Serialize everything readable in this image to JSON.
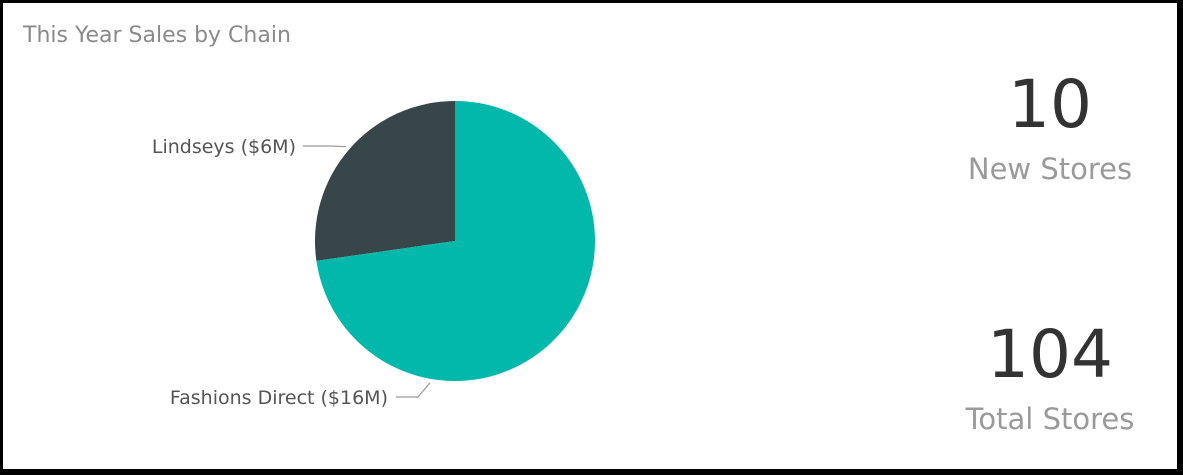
{
  "title": "This Year Sales by Chain",
  "chart_data": {
    "type": "pie",
    "title": "This Year Sales by Chain",
    "slices": [
      {
        "name": "Lindseys",
        "value": 6,
        "label": "Lindseys ($6M)",
        "color": "#374649"
      },
      {
        "name": "Fashions Direct",
        "value": 16,
        "label": "Fashions Direct ($16M)",
        "color": "#01B8AA"
      }
    ],
    "unit": "$M",
    "start_angle": "12 o'clock, counter-clockwise for first slice"
  },
  "cards": [
    {
      "value": "10",
      "label": "New Stores"
    },
    {
      "value": "104",
      "label": "Total Stores"
    }
  ]
}
